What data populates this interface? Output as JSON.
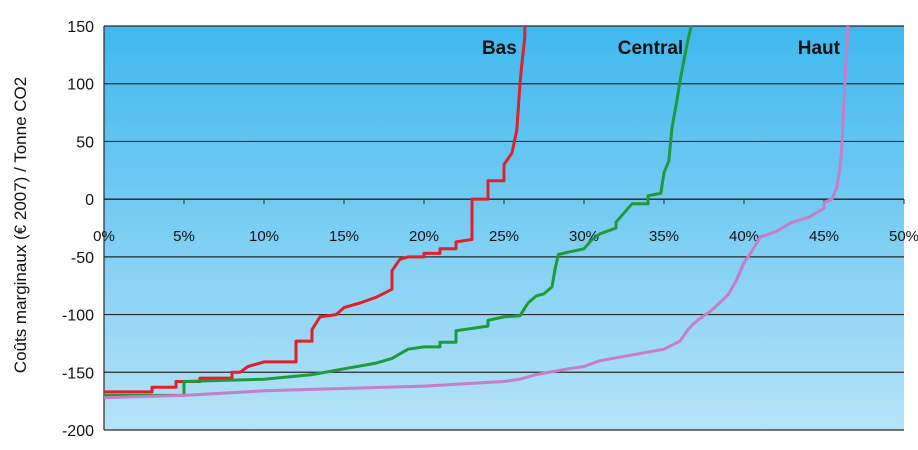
{
  "chart_data": {
    "type": "line",
    "ylabel": "Coûts marginaux (€ 2007) / Tonne CO2",
    "xlim": [
      0,
      50
    ],
    "ylim": [
      -200,
      150
    ],
    "x_ticks": [
      "0%",
      "5%",
      "10%",
      "15%",
      "20%",
      "25%",
      "30%",
      "35%",
      "40%",
      "45%",
      "50%"
    ],
    "x_tick_values": [
      0,
      5,
      10,
      15,
      20,
      25,
      30,
      35,
      40,
      45,
      50
    ],
    "y_ticks": [
      150,
      100,
      50,
      0,
      -50,
      -100,
      -150,
      -200
    ],
    "grid": true,
    "x_axis_position": "y=0",
    "background": [
      "#3fb8ee",
      "#b6e3f8"
    ],
    "series": [
      {
        "name": "Bas",
        "color": "#e0202a",
        "points": [
          [
            0,
            -167
          ],
          [
            3,
            -167
          ],
          [
            3,
            -163
          ],
          [
            4.5,
            -163
          ],
          [
            4.5,
            -158
          ],
          [
            6,
            -158
          ],
          [
            6,
            -155
          ],
          [
            8,
            -155
          ],
          [
            8,
            -150
          ],
          [
            8.5,
            -150
          ],
          [
            9,
            -145
          ],
          [
            10,
            -141
          ],
          [
            12,
            -141
          ],
          [
            12,
            -123
          ],
          [
            13,
            -123
          ],
          [
            13,
            -113
          ],
          [
            13.5,
            -102
          ],
          [
            14.5,
            -100
          ],
          [
            15,
            -94
          ],
          [
            16,
            -90
          ],
          [
            17,
            -85
          ],
          [
            18,
            -78
          ],
          [
            18,
            -62
          ],
          [
            18.5,
            -52
          ],
          [
            19,
            -50
          ],
          [
            20,
            -50
          ],
          [
            20,
            -47
          ],
          [
            21,
            -47
          ],
          [
            21,
            -43
          ],
          [
            22,
            -43
          ],
          [
            22,
            -37
          ],
          [
            23,
            -35
          ],
          [
            23,
            0
          ],
          [
            24,
            0
          ],
          [
            24,
            16
          ],
          [
            25,
            16
          ],
          [
            25,
            30
          ],
          [
            25.5,
            40
          ],
          [
            25.8,
            60
          ],
          [
            26,
            100
          ],
          [
            26.1,
            115
          ],
          [
            26.3,
            140
          ],
          [
            26.3,
            150
          ]
        ]
      },
      {
        "name": "Central",
        "color": "#1e9a3a",
        "points": [
          [
            0,
            -170
          ],
          [
            5,
            -170
          ],
          [
            5,
            -158
          ],
          [
            10,
            -156
          ],
          [
            13,
            -152
          ],
          [
            15,
            -147
          ],
          [
            17,
            -142
          ],
          [
            18,
            -138
          ],
          [
            19,
            -130
          ],
          [
            20,
            -128
          ],
          [
            21,
            -128
          ],
          [
            21,
            -124
          ],
          [
            22,
            -124
          ],
          [
            22,
            -114
          ],
          [
            24,
            -110
          ],
          [
            24,
            -105
          ],
          [
            25,
            -102
          ],
          [
            26,
            -101
          ],
          [
            26.5,
            -90
          ],
          [
            27,
            -84
          ],
          [
            27.5,
            -82
          ],
          [
            28,
            -76
          ],
          [
            28.2,
            -60
          ],
          [
            28.4,
            -48
          ],
          [
            29,
            -46
          ],
          [
            30,
            -43
          ],
          [
            30.5,
            -35
          ],
          [
            31,
            -30
          ],
          [
            32,
            -25
          ],
          [
            32,
            -20
          ],
          [
            33,
            -4
          ],
          [
            34,
            -4
          ],
          [
            34,
            3
          ],
          [
            34.8,
            5
          ],
          [
            35,
            23
          ],
          [
            35.3,
            33
          ],
          [
            35.5,
            62
          ],
          [
            35.8,
            85
          ],
          [
            36,
            102
          ],
          [
            36.2,
            117
          ],
          [
            36.5,
            138
          ],
          [
            36.7,
            150
          ]
        ]
      },
      {
        "name": "Haut",
        "color": "#c57ec8",
        "points": [
          [
            0,
            -172
          ],
          [
            5,
            -170
          ],
          [
            10,
            -166
          ],
          [
            20,
            -162
          ],
          [
            25,
            -158
          ],
          [
            26,
            -156
          ],
          [
            27,
            -152
          ],
          [
            29,
            -147
          ],
          [
            30,
            -145
          ],
          [
            31,
            -140
          ],
          [
            33,
            -135
          ],
          [
            35,
            -130
          ],
          [
            36,
            -123
          ],
          [
            36.5,
            -113
          ],
          [
            37,
            -106
          ],
          [
            38,
            -96
          ],
          [
            39,
            -83
          ],
          [
            39.5,
            -71
          ],
          [
            40,
            -55
          ],
          [
            40.5,
            -45
          ],
          [
            41,
            -33
          ],
          [
            42,
            -28
          ],
          [
            43,
            -20
          ],
          [
            44,
            -16
          ],
          [
            45,
            -8
          ],
          [
            45,
            -3
          ],
          [
            45.5,
            0
          ],
          [
            45.8,
            10
          ],
          [
            46,
            28
          ],
          [
            46.1,
            42
          ],
          [
            46.2,
            70
          ],
          [
            46.3,
            100
          ],
          [
            46.5,
            150
          ]
        ]
      }
    ]
  }
}
